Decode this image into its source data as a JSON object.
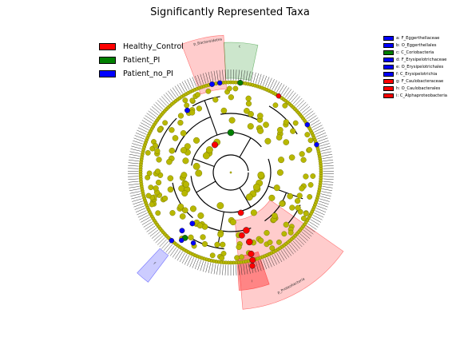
{
  "chart_data": {
    "type": "cladogram",
    "title": "Significantly Represented Taxa",
    "groups": [
      {
        "name": "Healthy_Control",
        "color": "#ff0000"
      },
      {
        "name": "Patient_PI",
        "color": "#008000"
      },
      {
        "name": "Patient_no_PI",
        "color": "#0000ff"
      }
    ],
    "taxa_legend": [
      {
        "label": "a: F_Eggerthellaceae",
        "group": "Patient_no_PI"
      },
      {
        "label": "b: O_Eggerthellales",
        "group": "Patient_no_PI"
      },
      {
        "label": "c: C_Coriobacteria",
        "group": "Patient_PI"
      },
      {
        "label": "d: F_Erysipelotrichaceae",
        "group": "Patient_no_PI"
      },
      {
        "label": "e: O_Erysipelotrichales",
        "group": "Patient_no_PI"
      },
      {
        "label": "f: C_Erysipelotrichia",
        "group": "Patient_no_PI"
      },
      {
        "label": "g: F_Caulobacteraceae",
        "group": "Healthy_Control"
      },
      {
        "label": "h: O_Caulobacterales",
        "group": "Healthy_Control"
      },
      {
        "label": "i: C_Alphaproteobacteria",
        "group": "Healthy_Control"
      }
    ],
    "clade_highlights": [
      {
        "label": "p_Bacteroidetes",
        "group": "Healthy_Control"
      },
      {
        "label": "c",
        "group": "Patient_PI"
      },
      {
        "label": "p_Proteobacteria",
        "group": "Healthy_Control"
      },
      {
        "label": "i",
        "group": "Healthy_Control"
      },
      {
        "label": "f",
        "group": "Patient_no_PI"
      }
    ]
  }
}
